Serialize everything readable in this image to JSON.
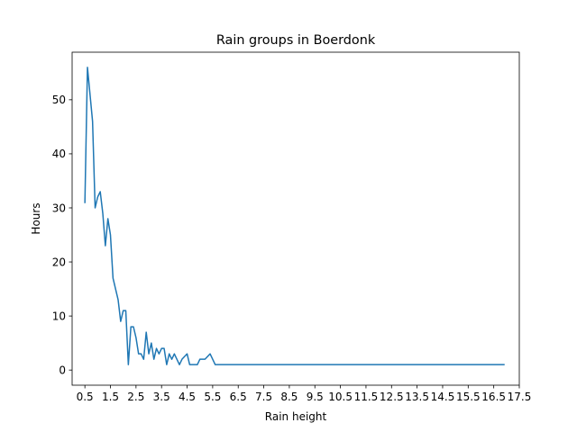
{
  "chart_data": {
    "type": "line",
    "title": "Rain groups in Boerdonk",
    "xlabel": "Rain height",
    "ylabel": "Hours",
    "xlim": [
      0.0,
      17.5
    ],
    "ylim": [
      -2.8,
      58.8
    ],
    "xticks": [
      "0.5",
      "1.5",
      "2.5",
      "3.5",
      "4.5",
      "5.5",
      "6.5",
      "7.5",
      "8.5",
      "9.5",
      "10.5",
      "11.5",
      "12.5",
      "13.5",
      "14.5",
      "15.5",
      "16.5",
      "17.5"
    ],
    "yticks": [
      "0",
      "10",
      "20",
      "30",
      "40",
      "50"
    ],
    "grid": false,
    "legend": "none",
    "line_color": "#1f77b4",
    "series": [
      {
        "x": [
          0.5,
          0.6,
          0.7,
          0.8,
          0.9,
          1.0,
          1.1,
          1.2,
          1.3,
          1.4,
          1.5,
          1.6,
          1.7,
          1.8,
          1.9,
          2.0,
          2.1,
          2.2,
          2.3,
          2.4,
          2.5,
          2.6,
          2.7,
          2.8,
          2.9,
          3.0,
          3.1,
          3.2,
          3.3,
          3.4,
          3.5,
          3.6,
          3.7,
          3.8,
          3.9,
          4.0,
          4.1,
          4.2,
          4.3,
          4.4,
          4.5,
          4.6,
          4.7,
          4.8,
          4.9,
          5.0,
          5.1,
          5.2,
          5.3,
          5.4,
          5.5,
          5.6,
          5.7,
          5.8,
          5.9,
          6.0,
          6.5,
          7.0,
          7.5,
          8.0,
          8.5,
          9.0,
          9.5,
          10.0,
          10.5,
          11.0,
          11.5,
          12.0,
          12.5,
          13.0,
          13.5,
          14.0,
          14.5,
          15.0,
          15.5,
          16.0,
          16.5,
          16.9
        ],
        "y": [
          31,
          56,
          51,
          46,
          30,
          32,
          33,
          29,
          23,
          28,
          25,
          17,
          15,
          13,
          9,
          11,
          11,
          1,
          8,
          8,
          6,
          3,
          3,
          2,
          7,
          3,
          5,
          2,
          4,
          3,
          4,
          4,
          1,
          3,
          2,
          3,
          2,
          1,
          2,
          2.5,
          3,
          1,
          1,
          1,
          1,
          2,
          2,
          2,
          2.5,
          3,
          2,
          1,
          1,
          1,
          1,
          1,
          1,
          1,
          1,
          1,
          1,
          1,
          1,
          1,
          1,
          1,
          1,
          1,
          1,
          1,
          1,
          1,
          1,
          1,
          1,
          1,
          1,
          1
        ]
      }
    ]
  }
}
